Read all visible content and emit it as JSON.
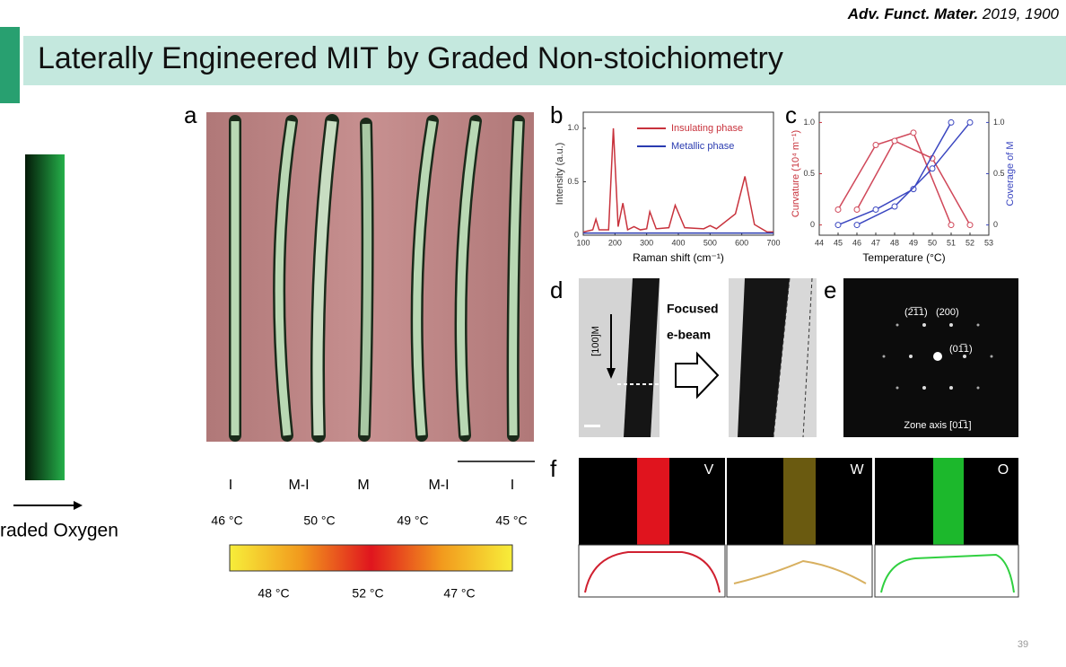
{
  "slide": {
    "citation_journal": "Adv. Funct. Mater.",
    "citation_rest": " 2019, 1900",
    "title": "Laterally Engineered MIT by Graded Non-stoichiometry",
    "left_label": "raded Oxygen",
    "page_number": "39",
    "panel_labels": [
      "a",
      "b",
      "c",
      "d",
      "e",
      "f"
    ],
    "phases": [
      "I",
      "M-I",
      "M",
      "M-I",
      "I"
    ],
    "temps_top": [
      "46 °C",
      "50 °C",
      "49 °C",
      "45 °C"
    ],
    "temps_bottom": [
      "48 °C",
      "52 °C",
      "47 °C"
    ],
    "d_texts": {
      "focused": "Focused",
      "ebeam": "e-beam",
      "direction": "[100]M"
    },
    "e_texts": {
      "spot1": "(2̅1̅1)",
      "spot2": "(200)",
      "spot3": "(01̅1)",
      "zone": "Zone axis [01̅1]"
    },
    "f_labels": [
      "V",
      "W",
      "O"
    ]
  },
  "chart_data": [
    {
      "type": "line",
      "xlabel": "Raman shift (cm⁻¹)",
      "ylabel": "Intensity (a.u.)",
      "xlim": [
        100,
        700
      ],
      "xticks": [
        100,
        200,
        300,
        400,
        500,
        600,
        700
      ],
      "ylim": [
        0,
        1.15
      ],
      "yticks": [
        0,
        0.5,
        {
          "value": 1,
          "label": "1.0"
        }
      ],
      "legend": "upper right",
      "series": [
        {
          "name": "Insulating phase",
          "color": "#c8323c",
          "x": [
            100,
            130,
            140,
            150,
            180,
            195,
            210,
            225,
            240,
            260,
            280,
            300,
            310,
            330,
            370,
            390,
            420,
            480,
            500,
            520,
            580,
            610,
            640,
            680,
            700
          ],
          "values": [
            0.03,
            0.05,
            0.15,
            0.05,
            0.05,
            1.0,
            0.08,
            0.3,
            0.05,
            0.08,
            0.05,
            0.06,
            0.22,
            0.06,
            0.07,
            0.28,
            0.07,
            0.06,
            0.09,
            0.06,
            0.2,
            0.55,
            0.1,
            0.03,
            0.03
          ]
        },
        {
          "name": "Metallic phase",
          "color": "#2a3bb0",
          "x": [
            100,
            700
          ],
          "values": [
            0.02,
            0.02
          ]
        }
      ]
    },
    {
      "type": "line",
      "xlabel": "Temperature (°C)",
      "ylabel": "Curvature (10⁴ m⁻¹)",
      "y2label": "Coverage of M",
      "xlim": [
        44,
        53
      ],
      "xticks": [
        44,
        45,
        46,
        47,
        48,
        49,
        50,
        51,
        52,
        53
      ],
      "ylim": [
        -0.1,
        1.1
      ],
      "yticks": [
        0,
        0.5,
        {
          "value": 1,
          "label": "1.0"
        }
      ],
      "y2lim": [
        -0.1,
        1.1
      ],
      "y2ticks": [
        0,
        0.5,
        {
          "value": 1,
          "label": "1.0"
        }
      ],
      "series": [
        {
          "color": "#d0485a",
          "x": [
            45,
            47,
            49,
            51
          ],
          "values": [
            0.15,
            0.78,
            0.9,
            0
          ]
        },
        {
          "color": "#d0485a",
          "x": [
            46,
            48,
            50,
            52
          ],
          "values": [
            0.15,
            0.82,
            0.65,
            0
          ]
        },
        {
          "color": "#3a46c0",
          "axis": "y2",
          "x": [
            45,
            47,
            49,
            51
          ],
          "values": [
            0,
            0.15,
            0.35,
            1.0
          ]
        },
        {
          "color": "#3a46c0",
          "axis": "y2",
          "x": [
            46,
            48,
            50,
            52
          ],
          "values": [
            0,
            0.18,
            0.55,
            1.0
          ]
        }
      ]
    }
  ]
}
